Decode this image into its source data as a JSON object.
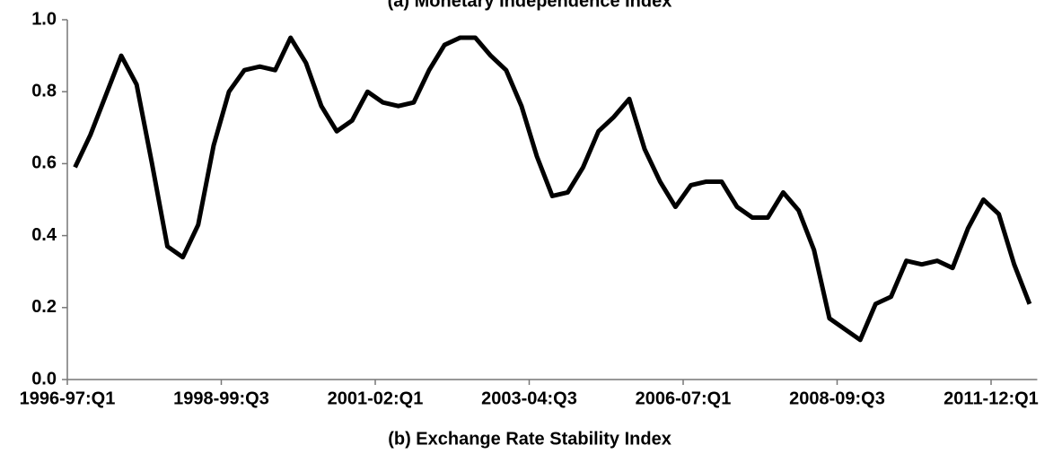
{
  "chart_data": {
    "type": "line",
    "title": "(a) Monetary Independence Index",
    "caption": "(b) Exchange Rate Stability Index",
    "categories": [
      "1996-97:Q1",
      null,
      null,
      null,
      null,
      null,
      null,
      null,
      null,
      null,
      "1998-99:Q3",
      null,
      null,
      null,
      null,
      null,
      null,
      null,
      null,
      null,
      "2001-02:Q1",
      null,
      null,
      null,
      null,
      null,
      null,
      null,
      null,
      null,
      "2003-04:Q3",
      null,
      null,
      null,
      null,
      null,
      null,
      null,
      null,
      null,
      "2006-07:Q1",
      null,
      null,
      null,
      null,
      null,
      null,
      null,
      null,
      null,
      "2008-09:Q3",
      null,
      null,
      null,
      null,
      null,
      null,
      null,
      null,
      null,
      "2011-12:Q1",
      null,
      null
    ],
    "values": [
      0.59,
      0.68,
      0.79,
      0.9,
      0.82,
      0.6,
      0.37,
      0.34,
      0.43,
      0.65,
      0.8,
      0.86,
      0.87,
      0.86,
      0.95,
      0.88,
      0.76,
      0.69,
      0.72,
      0.8,
      0.77,
      0.76,
      0.77,
      0.86,
      0.93,
      0.95,
      0.95,
      0.9,
      0.86,
      0.76,
      0.62,
      0.51,
      0.52,
      0.59,
      0.69,
      0.73,
      0.78,
      0.64,
      0.55,
      0.48,
      0.54,
      0.55,
      0.55,
      0.48,
      0.45,
      0.45,
      0.52,
      0.47,
      0.36,
      0.17,
      0.14,
      0.11,
      0.21,
      0.23,
      0.33,
      0.32,
      0.33,
      0.31,
      0.42,
      0.5,
      0.46,
      0.32,
      0.21
    ],
    "color": "#000000",
    "ylim": [
      0,
      1
    ],
    "yticks": [
      {
        "value": 0,
        "label": "0.0"
      },
      0.2,
      0.4,
      0.6,
      0.8,
      {
        "value": 1,
        "label": "1.0"
      }
    ],
    "grid": false
  }
}
